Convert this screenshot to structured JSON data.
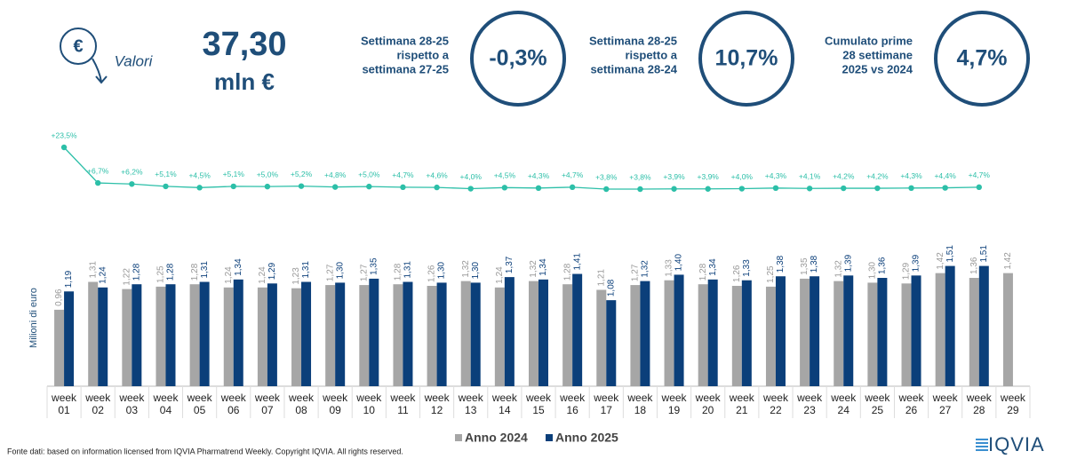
{
  "header": {
    "icon": "€",
    "metric": "Valori",
    "total": "37,30",
    "unit": "mln €",
    "kpis": [
      {
        "label": [
          "Settimana 28-25",
          "rispetto a",
          "settimana 27-25"
        ],
        "value": "-0,3%"
      },
      {
        "label": [
          "Settimana 28-25",
          "rispetto a",
          "settimana 28-24"
        ],
        "value": "10,7%"
      },
      {
        "label": [
          "Cumulato prime",
          "28 settimane",
          "2025 vs 2024"
        ],
        "value": "4,7%"
      }
    ]
  },
  "chart_data": {
    "type": "bar",
    "y_label": "Milioni di euro",
    "categories": [
      "week 01",
      "week 02",
      "week 03",
      "week 04",
      "week 05",
      "week 06",
      "week 07",
      "week 08",
      "week 09",
      "week 10",
      "week 11",
      "week 12",
      "week 13",
      "week 14",
      "week 15",
      "week 16",
      "week 17",
      "week 18",
      "week 19",
      "week 20",
      "week 21",
      "week 22",
      "week 23",
      "week 24",
      "week 25",
      "week 26",
      "week 27",
      "week 28",
      "week 29"
    ],
    "ylim": [
      0,
      3.3
    ],
    "series": [
      {
        "name": "Anno 2024",
        "color": "#a6a6a6",
        "values": [
          0.96,
          1.31,
          1.22,
          1.25,
          1.28,
          1.24,
          1.24,
          1.23,
          1.27,
          1.27,
          1.28,
          1.26,
          1.32,
          1.24,
          1.32,
          1.28,
          1.21,
          1.27,
          1.33,
          1.28,
          1.26,
          1.25,
          1.35,
          1.32,
          1.3,
          1.29,
          1.42,
          1.36,
          1.42
        ],
        "value_labels": [
          "0,96",
          "1,31",
          "1,22",
          "1,25",
          "1,28",
          "1,24",
          "1,24",
          "1,23",
          "1,27",
          "1,27",
          "1,28",
          "1,26",
          "1,32",
          "1,24",
          "1,32",
          "1,28",
          "1,21",
          "1,27",
          "1,33",
          "1,28",
          "1,26",
          "1,25",
          "1,35",
          "1,32",
          "1,30",
          "1,29",
          "1,42",
          "1,36",
          "1,42"
        ]
      },
      {
        "name": "Anno 2025",
        "color": "#0b3f7a",
        "values": [
          1.19,
          1.24,
          1.28,
          1.28,
          1.31,
          1.34,
          1.29,
          1.31,
          1.3,
          1.35,
          1.31,
          1.3,
          1.3,
          1.37,
          1.34,
          1.41,
          1.08,
          1.32,
          1.4,
          1.34,
          1.33,
          1.38,
          1.38,
          1.39,
          1.36,
          1.39,
          1.51,
          1.51,
          null
        ],
        "value_labels": [
          "1,19",
          "1,24",
          "1,28",
          "1,28",
          "1,31",
          "1,34",
          "1,29",
          "1,31",
          "1,30",
          "1,35",
          "1,31",
          "1,30",
          "1,30",
          "1,37",
          "1,34",
          "1,41",
          "1,08",
          "1,32",
          "1,40",
          "1,34",
          "1,33",
          "1,38",
          "1,38",
          "1,39",
          "1,36",
          "1,39",
          "1,51",
          "1,51",
          null
        ]
      }
    ],
    "growth": {
      "color": "#2cbfa8",
      "values": [
        23.5,
        6.7,
        6.2,
        5.1,
        4.5,
        5.1,
        5.0,
        5.2,
        4.8,
        5.0,
        4.7,
        4.6,
        4.0,
        4.5,
        4.3,
        4.7,
        3.8,
        3.8,
        3.9,
        3.9,
        4.0,
        4.3,
        4.1,
        4.2,
        4.2,
        4.3,
        4.4,
        4.7
      ],
      "value_labels": [
        "+23,5%",
        "+6,7%",
        "+6,2%",
        "+5,1%",
        "+4,5%",
        "+5,1%",
        "+5,0%",
        "+5,2%",
        "+4,8%",
        "+5,0%",
        "+4,7%",
        "+4,6%",
        "+4,0%",
        "+4,5%",
        "+4,3%",
        "+4,7%",
        "+3,8%",
        "+3,8%",
        "+3,9%",
        "+3,9%",
        "+4,0%",
        "+4,3%",
        "+4,1%",
        "+4,2%",
        "+4,2%",
        "+4,3%",
        "+4,4%",
        "+4,7%"
      ]
    },
    "legend": "bottom"
  },
  "footer": {
    "source": "Fonte dati: based on information licensed from IQVIA Pharmatrend Weekly. Copyright IQVIA. All rights reserved.",
    "logo": "IQVIA"
  }
}
